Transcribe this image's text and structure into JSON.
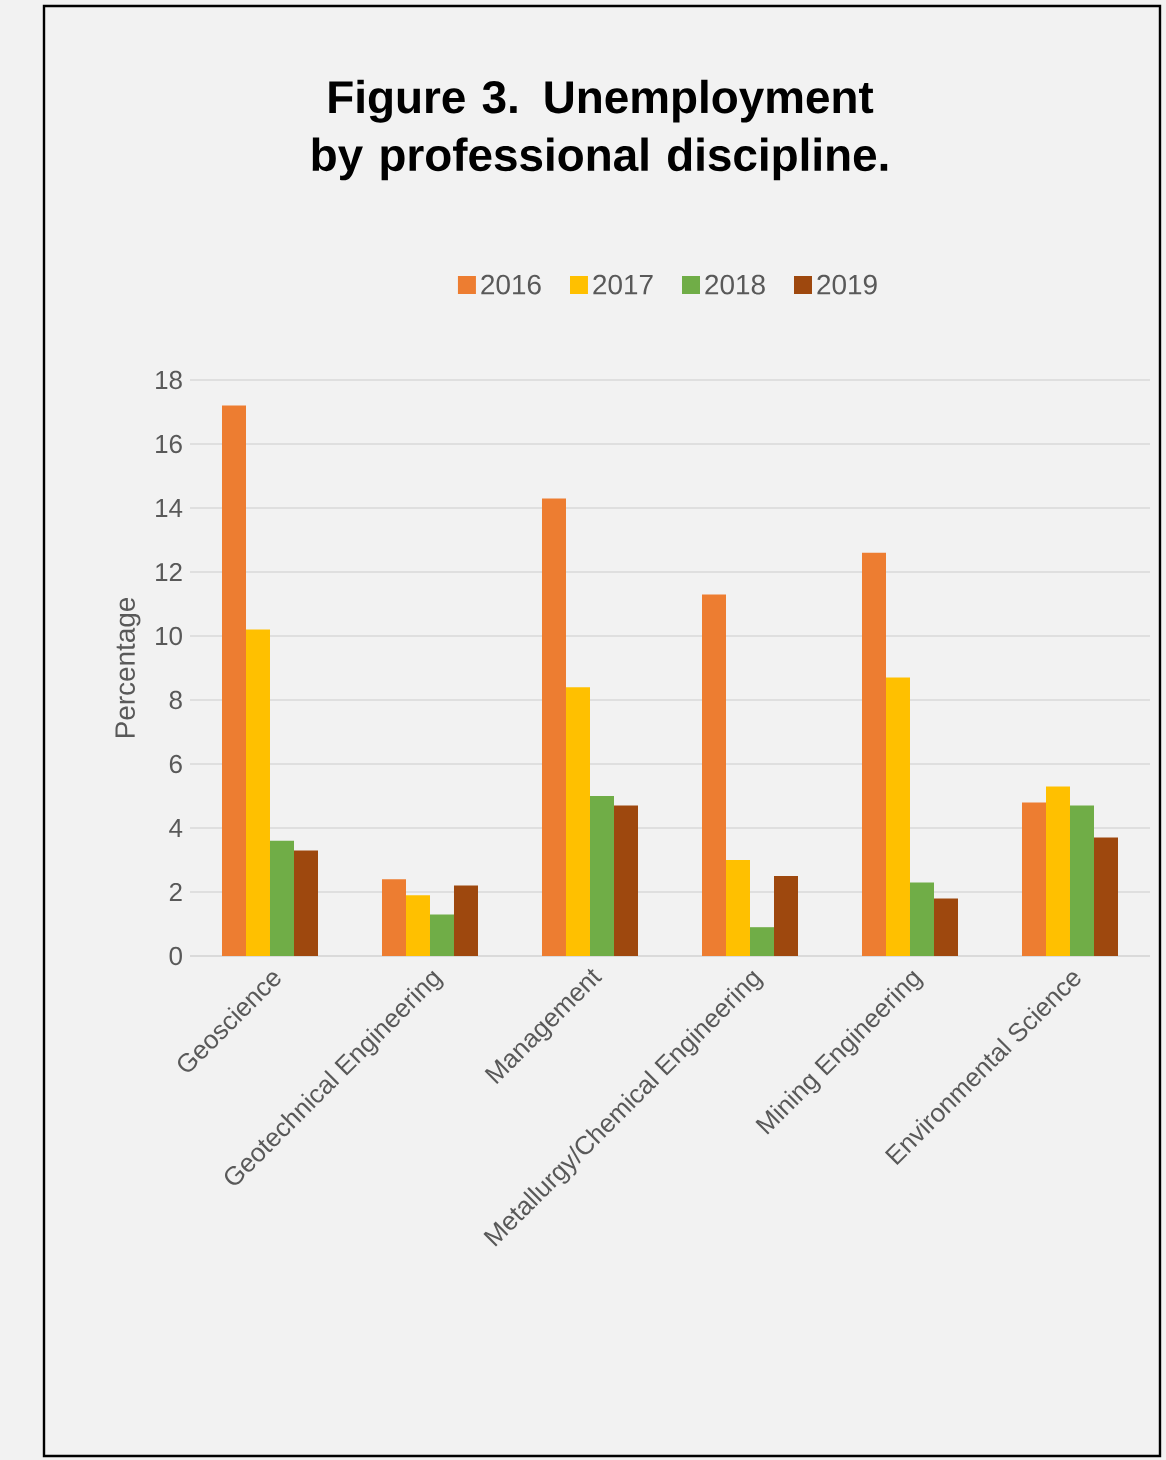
{
  "chart_data": {
    "type": "bar",
    "title": "Figure 3. Unemployment by professional discipline.",
    "ylabel": "Percentage",
    "categories": [
      "Geoscience",
      "Geotechnical Engineering",
      "Management",
      "Metallurgy/Chemical Engineering",
      "Mining Engineering",
      "Environmental Science"
    ],
    "series": [
      {
        "name": "2016",
        "color": "#ed7d31",
        "values": [
          17.2,
          2.4,
          14.3,
          11.3,
          12.6,
          4.8
        ]
      },
      {
        "name": "2017",
        "color": "#ffc000",
        "values": [
          10.2,
          1.9,
          8.4,
          3.0,
          8.7,
          5.3
        ]
      },
      {
        "name": "2018",
        "color": "#70ad47",
        "values": [
          3.6,
          1.3,
          5.0,
          0.9,
          2.3,
          4.7
        ]
      },
      {
        "name": "2019",
        "color": "#9e480e",
        "values": [
          3.3,
          2.2,
          4.7,
          2.5,
          1.8,
          3.7
        ]
      }
    ],
    "ylim": [
      0,
      18
    ],
    "yticks": [
      0,
      2,
      4,
      6,
      8,
      10,
      12,
      14,
      16,
      18
    ],
    "grid": "y",
    "legend": "top"
  }
}
